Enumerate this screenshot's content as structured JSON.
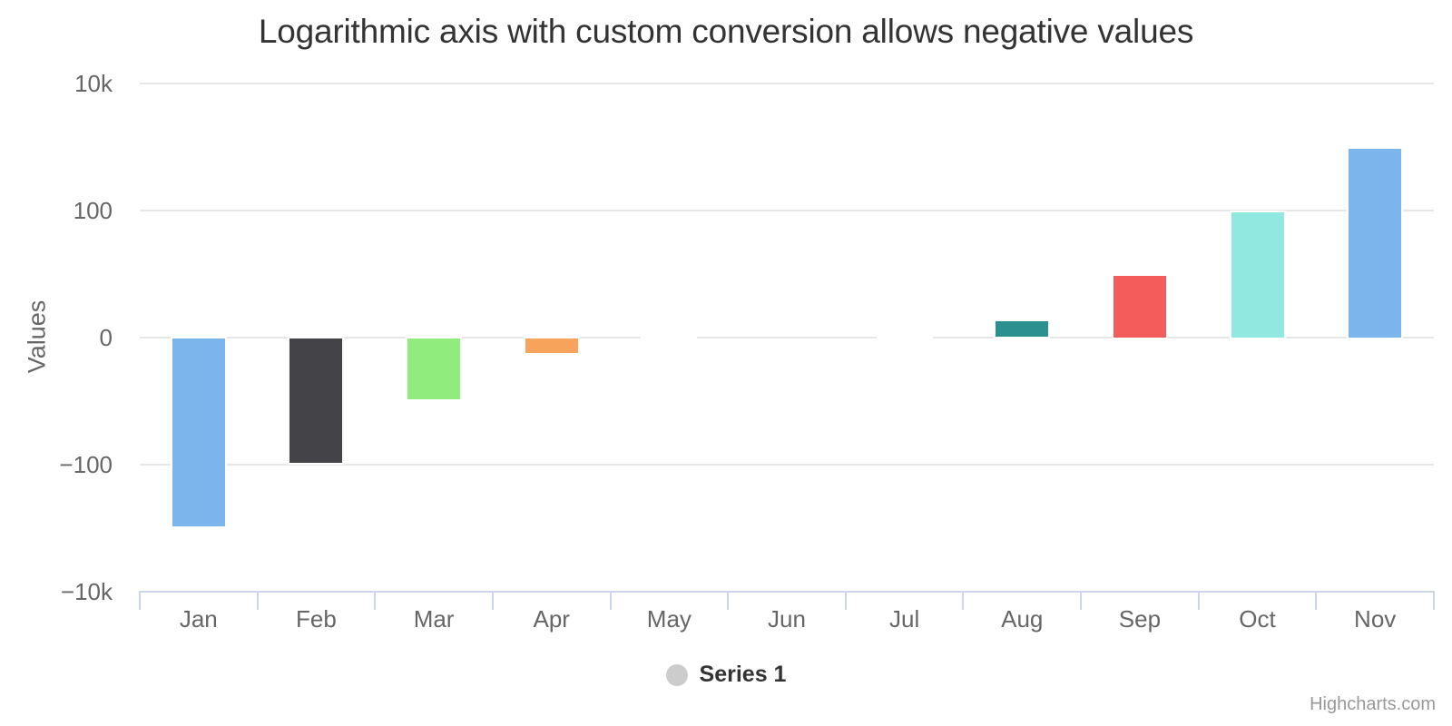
{
  "chart_data": {
    "type": "bar",
    "title": "Logarithmic axis with custom conversion allows negative values",
    "xlabel": "",
    "ylabel": "Values",
    "categories": [
      "Jan",
      "Feb",
      "Mar",
      "Apr",
      "May",
      "Jun",
      "Jul",
      "Aug",
      "Sep",
      "Oct",
      "Nov"
    ],
    "series": [
      {
        "name": "Series 1",
        "values": [
          -1000,
          -100,
          -10,
          -1,
          -0.1,
          0,
          0.1,
          1,
          10,
          100,
          1000
        ]
      }
    ],
    "point_colors": [
      "#7cb5ec",
      "#434348",
      "#90ed7d",
      "#f7a35c",
      "#8085e9",
      "#f15c80",
      "#e4d354",
      "#2b908f",
      "#f45b5b",
      "#91e8e1",
      "#7cb5ec"
    ],
    "y_axis": {
      "type": "logarithmic",
      "allow_negative_log": true,
      "ylim_decades": [
        -4,
        4
      ],
      "ticks": [
        {
          "label": "10k",
          "value": 10000
        },
        {
          "label": "100",
          "value": 100
        },
        {
          "label": "0",
          "value": 0
        },
        {
          "label": "−100",
          "value": -100
        },
        {
          "label": "−10k",
          "value": -10000
        }
      ]
    },
    "legend": {
      "position": "bottom-center",
      "series_name": "Series 1",
      "marker_color": "#cccccc"
    },
    "credits": "Highcharts.com",
    "colors": {
      "background": "#ffffff",
      "grid": "#e6e6e6",
      "axis_line": "#ccd6eb",
      "tick": "#ccd6eb",
      "axis_label": "#666666",
      "title_text": "#333333",
      "legend_text": "#333333",
      "credits_text": "#999999",
      "bar_border": "#ffffff"
    }
  }
}
